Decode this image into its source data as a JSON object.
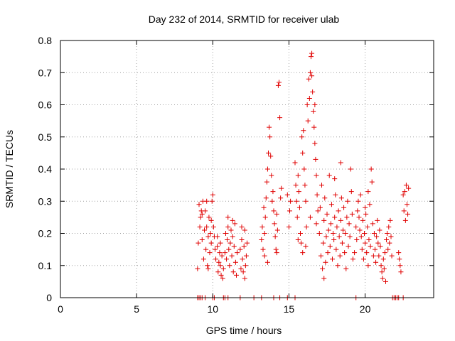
{
  "chart_data": {
    "type": "scatter",
    "title": "Day 232 of 2014, SRMTID for receiver ulab",
    "xlabel": "GPS time / hours",
    "ylabel": "SRMTID / TECUs",
    "xlim": [
      0,
      24.5
    ],
    "ylim": [
      0,
      0.8
    ],
    "xticks": [
      0,
      5,
      10,
      15,
      20
    ],
    "yticks": [
      0,
      0.1,
      0.2,
      0.3,
      0.4,
      0.5,
      0.6,
      0.7,
      0.8
    ],
    "xtick_labels": [
      "0",
      "5",
      "10",
      "15",
      "20"
    ],
    "ytick_labels": [
      "0",
      "0.1",
      "0.2",
      "0.3",
      "0.4",
      "0.5",
      "0.6",
      "0.7",
      "0.8"
    ],
    "grid": true,
    "marker": "+",
    "color": "#e00000",
    "series": [
      {
        "name": "SRMTID",
        "points": [
          [
            9.0,
            0
          ],
          [
            9.1,
            0
          ],
          [
            9.2,
            0
          ],
          [
            9.3,
            0
          ],
          [
            9.5,
            0
          ],
          [
            10.0,
            0
          ],
          [
            10.1,
            0
          ],
          [
            10.7,
            0
          ],
          [
            10.8,
            0
          ],
          [
            11.0,
            0
          ],
          [
            11.8,
            0
          ],
          [
            12.7,
            0
          ],
          [
            13.2,
            0
          ],
          [
            14.0,
            0
          ],
          [
            14.4,
            0
          ],
          [
            14.9,
            0
          ],
          [
            15.4,
            0
          ],
          [
            19.4,
            0
          ],
          [
            21.8,
            0
          ],
          [
            21.9,
            0
          ],
          [
            22.0,
            0
          ],
          [
            22.1,
            0
          ],
          [
            22.2,
            0
          ],
          [
            22.5,
            0
          ],
          [
            9.0,
            0.09
          ],
          [
            9.05,
            0.17
          ],
          [
            9.1,
            0.29
          ],
          [
            9.15,
            0.22
          ],
          [
            9.2,
            0.25
          ],
          [
            9.25,
            0.27
          ],
          [
            9.3,
            0.18
          ],
          [
            9.35,
            0.3
          ],
          [
            9.4,
            0.12
          ],
          [
            9.45,
            0.21
          ],
          [
            9.5,
            0.27
          ],
          [
            9.55,
            0.15
          ],
          [
            9.6,
            0.22
          ],
          [
            9.65,
            0.1
          ],
          [
            9.7,
            0.19
          ],
          [
            9.75,
            0.25
          ],
          [
            9.8,
            0.14
          ],
          [
            9.85,
            0.2
          ],
          [
            9.9,
            0.17
          ],
          [
            9.95,
            0.3
          ],
          [
            10.0,
            0.32
          ],
          [
            10.05,
            0.22
          ],
          [
            10.1,
            0.19
          ],
          [
            10.15,
            0.15
          ],
          [
            9.3,
            0.26
          ],
          [
            9.6,
            0.3
          ],
          [
            9.7,
            0.09
          ],
          [
            9.9,
            0.24
          ],
          [
            10.2,
            0.12
          ],
          [
            10.3,
            0.16
          ],
          [
            10.35,
            0.08
          ],
          [
            10.4,
            0.11
          ],
          [
            10.45,
            0.14
          ],
          [
            10.5,
            0.1
          ],
          [
            10.55,
            0.07
          ],
          [
            10.6,
            0.13
          ],
          [
            10.65,
            0.06
          ],
          [
            10.7,
            0.09
          ],
          [
            10.3,
            0.19
          ],
          [
            10.5,
            0.17
          ],
          [
            10.8,
            0.14
          ],
          [
            10.85,
            0.2
          ],
          [
            10.9,
            0.12
          ],
          [
            10.95,
            0.18
          ],
          [
            11.0,
            0.22
          ],
          [
            11.05,
            0.15
          ],
          [
            11.1,
            0.1
          ],
          [
            11.15,
            0.17
          ],
          [
            11.2,
            0.21
          ],
          [
            11.25,
            0.13
          ],
          [
            11.3,
            0.19
          ],
          [
            11.35,
            0.08
          ],
          [
            11.4,
            0.16
          ],
          [
            11.45,
            0.23
          ],
          [
            11.5,
            0.11
          ],
          [
            11.55,
            0.07
          ],
          [
            11.6,
            0.14
          ],
          [
            11.0,
            0.25
          ],
          [
            11.3,
            0.24
          ],
          [
            11.8,
            0.15
          ],
          [
            11.85,
            0.09
          ],
          [
            11.9,
            0.18
          ],
          [
            11.95,
            0.12
          ],
          [
            12.0,
            0.08
          ],
          [
            12.05,
            0.16
          ],
          [
            12.1,
            0.21
          ],
          [
            12.15,
            0.1
          ],
          [
            12.2,
            0.13
          ],
          [
            12.25,
            0.17
          ],
          [
            11.9,
            0.22
          ],
          [
            12.1,
            0.06
          ],
          [
            13.2,
            0.18
          ],
          [
            13.25,
            0.22
          ],
          [
            13.3,
            0.15
          ],
          [
            13.35,
            0.28
          ],
          [
            13.4,
            0.2
          ],
          [
            13.45,
            0.25
          ],
          [
            13.5,
            0.31
          ],
          [
            13.55,
            0.36
          ],
          [
            13.6,
            0.4
          ],
          [
            13.65,
            0.45
          ],
          [
            13.7,
            0.53
          ],
          [
            13.75,
            0.5
          ],
          [
            13.8,
            0.44
          ],
          [
            13.85,
            0.38
          ],
          [
            13.9,
            0.3
          ],
          [
            13.95,
            0.33
          ],
          [
            14.0,
            0.27
          ],
          [
            14.05,
            0.23
          ],
          [
            14.1,
            0.19
          ],
          [
            14.15,
            0.15
          ],
          [
            14.2,
            0.26
          ],
          [
            14.25,
            0.21
          ],
          [
            14.3,
            0.66
          ],
          [
            14.35,
            0.67
          ],
          [
            14.4,
            0.56
          ],
          [
            14.45,
            0.31
          ],
          [
            14.5,
            0.34
          ],
          [
            13.4,
            0.13
          ],
          [
            13.6,
            0.11
          ],
          [
            14.2,
            0.14
          ],
          [
            14.9,
            0.32
          ],
          [
            15.0,
            0.22
          ],
          [
            15.05,
            0.27
          ],
          [
            15.1,
            0.3
          ],
          [
            15.4,
            0.42
          ],
          [
            15.45,
            0.35
          ],
          [
            15.5,
            0.3
          ],
          [
            15.55,
            0.25
          ],
          [
            15.6,
            0.38
          ],
          [
            15.65,
            0.33
          ],
          [
            15.7,
            0.28
          ],
          [
            15.75,
            0.2
          ],
          [
            15.8,
            0.17
          ],
          [
            15.85,
            0.5
          ],
          [
            15.9,
            0.45
          ],
          [
            15.95,
            0.52
          ],
          [
            16.0,
            0.4
          ],
          [
            16.05,
            0.35
          ],
          [
            16.1,
            0.3
          ],
          [
            16.15,
            0.22
          ],
          [
            16.2,
            0.6
          ],
          [
            16.25,
            0.55
          ],
          [
            16.3,
            0.68
          ],
          [
            16.35,
            0.62
          ],
          [
            16.4,
            0.7
          ],
          [
            16.45,
            0.75
          ],
          [
            16.5,
            0.76
          ],
          [
            16.55,
            0.64
          ],
          [
            16.6,
            0.58
          ],
          [
            16.65,
            0.53
          ],
          [
            16.7,
            0.48
          ],
          [
            16.75,
            0.43
          ],
          [
            16.8,
            0.38
          ],
          [
            16.85,
            0.32
          ],
          [
            16.9,
            0.27
          ],
          [
            15.6,
            0.18
          ],
          [
            15.9,
            0.14
          ],
          [
            16.1,
            0.16
          ],
          [
            16.5,
            0.69
          ],
          [
            16.7,
            0.6
          ],
          [
            16.4,
            0.25
          ],
          [
            16.8,
            0.23
          ],
          [
            17.0,
            0.2
          ],
          [
            17.05,
            0.28
          ],
          [
            17.1,
            0.13
          ],
          [
            17.15,
            0.35
          ],
          [
            17.2,
            0.09
          ],
          [
            17.25,
            0.17
          ],
          [
            17.3,
            0.24
          ],
          [
            17.35,
            0.31
          ],
          [
            17.4,
            0.11
          ],
          [
            17.45,
            0.19
          ],
          [
            17.5,
            0.26
          ],
          [
            17.55,
            0.14
          ],
          [
            17.6,
            0.21
          ],
          [
            17.65,
            0.38
          ],
          [
            17.7,
            0.16
          ],
          [
            17.75,
            0.23
          ],
          [
            17.8,
            0.29
          ],
          [
            17.85,
            0.12
          ],
          [
            17.9,
            0.2
          ],
          [
            17.95,
            0.18
          ],
          [
            18.0,
            0.25
          ],
          [
            18.05,
            0.32
          ],
          [
            18.1,
            0.15
          ],
          [
            18.15,
            0.22
          ],
          [
            18.2,
            0.1
          ],
          [
            18.25,
            0.27
          ],
          [
            18.3,
            0.19
          ],
          [
            18.35,
            0.13
          ],
          [
            18.4,
            0.24
          ],
          [
            18.45,
            0.31
          ],
          [
            18.5,
            0.17
          ],
          [
            18.55,
            0.21
          ],
          [
            18.6,
            0.28
          ],
          [
            18.65,
            0.14
          ],
          [
            18.7,
            0.2
          ],
          [
            18.75,
            0.09
          ],
          [
            18.8,
            0.25
          ],
          [
            18.85,
            0.3
          ],
          [
            18.9,
            0.16
          ],
          [
            18.95,
            0.23
          ],
          [
            19.0,
            0.19
          ],
          [
            19.05,
            0.4
          ],
          [
            19.1,
            0.33
          ],
          [
            19.15,
            0.26
          ],
          [
            19.2,
            0.12
          ],
          [
            18.0,
            0.37
          ],
          [
            18.4,
            0.42
          ],
          [
            17.3,
            0.06
          ],
          [
            19.3,
            0.14
          ],
          [
            19.4,
            0.22
          ],
          [
            19.45,
            0.18
          ],
          [
            19.5,
            0.27
          ],
          [
            19.55,
            0.3
          ],
          [
            19.6,
            0.25
          ],
          [
            19.65,
            0.21
          ],
          [
            19.7,
            0.32
          ],
          [
            19.75,
            0.19
          ],
          [
            19.8,
            0.15
          ],
          [
            19.85,
            0.24
          ],
          [
            19.9,
            0.12
          ],
          [
            19.95,
            0.2
          ],
          [
            20.0,
            0.17
          ],
          [
            20.05,
            0.26
          ],
          [
            20.1,
            0.14
          ],
          [
            20.15,
            0.22
          ],
          [
            20.2,
            0.1
          ],
          [
            20.25,
            0.18
          ],
          [
            20.3,
            0.29
          ],
          [
            20.35,
            0.16
          ],
          [
            20.4,
            0.4
          ],
          [
            20.45,
            0.36
          ],
          [
            20.5,
            0.23
          ],
          [
            20.55,
            0.13
          ],
          [
            20.6,
            0.2
          ],
          [
            20.65,
            0.15
          ],
          [
            20.7,
            0.11
          ],
          [
            20.75,
            0.19
          ],
          [
            20.8,
            0.24
          ],
          [
            20.85,
            0.17
          ],
          [
            20.9,
            0.13
          ],
          [
            20.95,
            0.21
          ],
          [
            21.0,
            0.16
          ],
          [
            21.05,
            0.1
          ],
          [
            21.1,
            0.08
          ],
          [
            21.15,
            0.06
          ],
          [
            21.2,
            0.12
          ],
          [
            21.25,
            0.09
          ],
          [
            21.3,
            0.14
          ],
          [
            21.35,
            0.05
          ],
          [
            21.4,
            0.18
          ],
          [
            21.45,
            0.2
          ],
          [
            21.5,
            0.15
          ],
          [
            21.55,
            0.22
          ],
          [
            21.6,
            0.17
          ],
          [
            21.65,
            0.24
          ],
          [
            21.7,
            0.19
          ],
          [
            21.75,
            0.13
          ],
          [
            20.0,
            0.28
          ],
          [
            20.2,
            0.33
          ],
          [
            22.2,
            0.14
          ],
          [
            22.25,
            0.12
          ],
          [
            22.3,
            0.1
          ],
          [
            22.35,
            0.08
          ],
          [
            22.5,
            0.32
          ],
          [
            22.55,
            0.27
          ],
          [
            22.6,
            0.33
          ],
          [
            22.65,
            0.24
          ],
          [
            22.7,
            0.35
          ],
          [
            22.75,
            0.29
          ],
          [
            22.8,
            0.26
          ],
          [
            22.85,
            0.34
          ]
        ]
      }
    ]
  }
}
